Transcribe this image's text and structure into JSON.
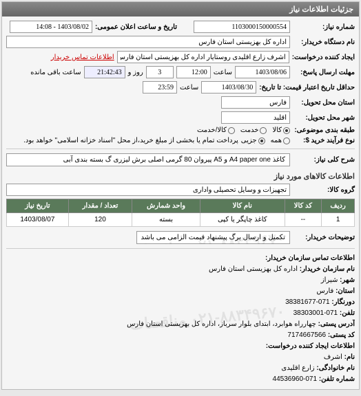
{
  "panel_title": "جزئیات اطلاعات نیاز",
  "fields": {
    "req_no_label": "شماره نیاز:",
    "req_no": "1103000150000554",
    "pub_datetime_label": "تاریخ و ساعت اعلان عمومی:",
    "pub_datetime": "1403/08/02 - 14:08",
    "buyer_label": "نام دستگاه خریدار:",
    "buyer": "اداره کل بهزیستی استان فارس",
    "creator_label": "ایجاد کننده درخواست:",
    "creator": "اشرف زارع اقلیدی روستایار اداره کل بهزیستی استان فارس",
    "contact_link": "اطلاعات تماس خریدار",
    "deadline_label": "مهلت ارسال پاسخ:",
    "deadline_to": "تا تاریخ:",
    "deadline_date": "1403/08/06",
    "deadline_time_label": "ساعت",
    "deadline_time": "12:00",
    "days_lbl": "روز و",
    "days_val": "3",
    "remain_time": "21:42:43",
    "remain_label": "ساعت باقی مانده",
    "validity_label": "حداقل تاریخ اعتبار قیمت: تا تاریخ:",
    "validity_date": "1403/08/30",
    "validity_time_label": "ساعت",
    "validity_time": "23:59",
    "province_label": "استان محل تحویل:",
    "province": "فارس",
    "city_label": "شهر محل تحویل:",
    "city": "اقلید",
    "subject_type_label": "طبقه بندی موضوعی:",
    "radio_kala": "کالا",
    "radio_khadamat": "خدمت",
    "radio_kala_khadamat": "کالا/خدمت",
    "process_label": "نوع فرآیند خرید $:",
    "radio_all": "همه",
    "radio_partial": "جزیی",
    "process_note": "پرداخت تمام یا بخشی از مبلغ خرید،از محل \"اسناد خزانه اسلامی\" خواهد بود.",
    "need_code_label": "شرح کلی نیاز:",
    "need_code": "کاغذ A4 paper one و A5 پیروان 80 گرمی اصلی برش لیزری گ بسته بندی آبی",
    "items_section": "اطلاعات کالاهای مورد نیاز",
    "group_label": "گروه کالا:",
    "group": "تجهیزات و وسایل تحصیلی واداری",
    "desc_label": "توضیحات خریدار:",
    "desc": "تکمیل و ارسال برگ پیشنهاد قیمت الزامی می باشد"
  },
  "table": {
    "headers": [
      "ردیف",
      "کد کالا",
      "نام کالا",
      "واحد شمارش",
      "تعداد / مقدار",
      "تاریخ نیاز"
    ],
    "rows": [
      [
        "1",
        "--",
        "کاغذ چاپگر یا کپی",
        "بسته",
        "120",
        "1403/08/07"
      ]
    ]
  },
  "contact": {
    "title": "اطلاعات تماس سازمان خریدار:",
    "org_label": "نام سازمان خریدار:",
    "org": "اداره کل بهزیستی استان فارس",
    "city_label": "شهر:",
    "city": "شیراز",
    "province_label": "استان:",
    "province": "فارس",
    "fax_label": "دورنگار:",
    "fax": "071-38381677",
    "phone_label": "تلفن:",
    "phone": "071-38303001",
    "address_label": "آدرس پستی:",
    "address": "چهارراه هوابرد، ابتدای بلوار سرباز، اداره کل بهزیستی استان فارس",
    "postal_label": "کد پستی:",
    "postal": "7174667566",
    "req_creator_title": "اطلاعات ایجاد کننده درخواست:",
    "name_label": "نام:",
    "name": "اشرف",
    "family_label": "نام خانوادگی:",
    "family": "زارع اقلیدی",
    "tel_label": "شماره تلفن:",
    "tel": "071-44536960"
  },
  "watermark": "۰۲۱-۸۸۳۴۹۶۷۰ مناقصات"
}
